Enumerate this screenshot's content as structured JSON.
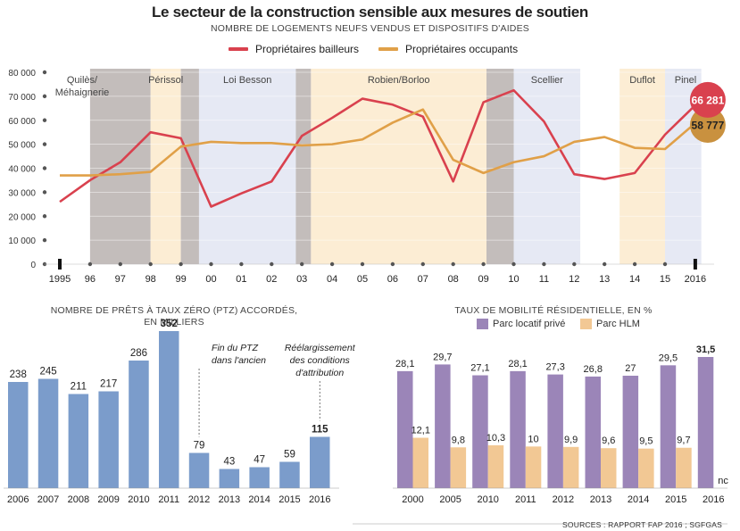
{
  "title": "Le secteur de la construction sensible aux mesures de soutien",
  "subtitle": "NOMBRE DE LOGEMENTS NEUFS VENDUS ET DISPOSITIFS D'AIDES",
  "legend": {
    "bailleurs": "Propriétaires bailleurs",
    "occupants": "Propriétaires occupants"
  },
  "colors": {
    "bailleurs": "#d9414e",
    "occupants": "#e0a048",
    "ptz": "#7b9ccb",
    "prive": "#9b85b8",
    "hlm": "#f2c894"
  },
  "sources": "SOURCES : RAPPORT FAP 2016 ; SGFGAS",
  "chart_data": [
    {
      "type": "line",
      "title": "Le secteur de la construction sensible aux mesures de soutien",
      "subtitle": "NOMBRE DE LOGEMENTS NEUFS VENDUS ET DISPOSITIFS D'AIDES",
      "x": [
        "1995",
        "96",
        "97",
        "98",
        "99",
        "00",
        "01",
        "02",
        "03",
        "04",
        "05",
        "06",
        "07",
        "08",
        "09",
        "10",
        "11",
        "12",
        "13",
        "14",
        "15",
        "2016"
      ],
      "ylim": [
        0,
        80000
      ],
      "yticks": [
        "0",
        "10 000",
        "20 000",
        "30 000",
        "40 000",
        "50 000",
        "60 000",
        "70 000",
        "80 000"
      ],
      "series": [
        {
          "name": "Propriétaires bailleurs",
          "values": [
            26000,
            35000,
            42500,
            55000,
            52500,
            24000,
            29500,
            34500,
            53500,
            61000,
            69000,
            66500,
            61500,
            34500,
            67500,
            72500,
            59500,
            37500,
            35500,
            38000,
            54000,
            66281
          ]
        },
        {
          "name": "Propriétaires occupants",
          "values": [
            37000,
            37000,
            37500,
            38500,
            49000,
            51000,
            50500,
            50500,
            49500,
            50000,
            52000,
            59000,
            64500,
            43500,
            38000,
            42500,
            45000,
            51000,
            53000,
            48500,
            48000,
            58777
          ]
        }
      ],
      "end_labels": [
        "66 281",
        "58 777"
      ],
      "schemes": [
        {
          "name": "Quilès/\nMéhaignerie",
          "from": 0,
          "to": 1,
          "band": "none"
        },
        {
          "name": "",
          "from": 1,
          "to": 3,
          "band": "dark"
        },
        {
          "name": "Périssol",
          "from": 3,
          "to": 4,
          "band": "cream"
        },
        {
          "name": "",
          "from": 4,
          "to": 4.6,
          "band": "dark"
        },
        {
          "name": "Loi Besson",
          "from": 4.6,
          "to": 7.8,
          "band": "blue"
        },
        {
          "name": "",
          "from": 7.8,
          "to": 8.3,
          "band": "dark"
        },
        {
          "name": "Robien/Borloo",
          "from": 8.3,
          "to": 14.1,
          "band": "cream"
        },
        {
          "name": "",
          "from": 14.1,
          "to": 15,
          "band": "dark"
        },
        {
          "name": "Scellier",
          "from": 15,
          "to": 17.2,
          "band": "blue"
        },
        {
          "name": "",
          "from": 17.2,
          "to": 18.5,
          "band": "none"
        },
        {
          "name": "Duflot",
          "from": 18.5,
          "to": 20,
          "band": "cream"
        },
        {
          "name": "Pinel",
          "from": 20,
          "to": 21.2,
          "band": "blue"
        }
      ]
    },
    {
      "type": "bar",
      "title": "NOMBRE DE PRÊTS À TAUX ZÉRO (PTZ) ACCORDÉS,\nEN MILLIERS",
      "categories": [
        "2006",
        "2007",
        "2008",
        "2009",
        "2010",
        "2011",
        "2012",
        "2013",
        "2014",
        "2015",
        "2016"
      ],
      "values": [
        238,
        245,
        211,
        217,
        286,
        352,
        79,
        43,
        47,
        59,
        115
      ],
      "labels": [
        "238",
        "245",
        "211",
        "217",
        "286",
        "352",
        "79",
        "43",
        "47",
        "59",
        "115"
      ],
      "ylim": [
        0,
        400
      ],
      "annotations": [
        {
          "category": "2012",
          "text": "Fin du PTZ\ndans l'ancien"
        },
        {
          "category": "2016",
          "text": "Réélargissement\ndes conditions\nd'attribution"
        }
      ]
    },
    {
      "type": "bar",
      "title": "TAUX DE MOBILITÉ RÉSIDENTIELLE, EN %",
      "categories": [
        "2000",
        "2005",
        "2010",
        "2011",
        "2012",
        "2013",
        "2014",
        "2015",
        "2016"
      ],
      "series": [
        {
          "name": "Parc locatif privé",
          "values": [
            28.1,
            29.7,
            27.1,
            28.1,
            27.3,
            26.8,
            27,
            29.5,
            31.5
          ],
          "labels": [
            "28,1",
            "29,7",
            "27,1",
            "28,1",
            "27,3",
            "26,8",
            "27",
            "29,5",
            "31,5"
          ]
        },
        {
          "name": "Parc HLM",
          "values": [
            12.1,
            9.8,
            10.3,
            10,
            9.9,
            9.6,
            9.5,
            9.7,
            null
          ],
          "labels": [
            "12,1",
            "9,8",
            "10,3",
            "10",
            "9,9",
            "9,6",
            "9,5",
            "9,7",
            "nc"
          ]
        }
      ],
      "ylim": [
        0,
        35
      ]
    }
  ]
}
